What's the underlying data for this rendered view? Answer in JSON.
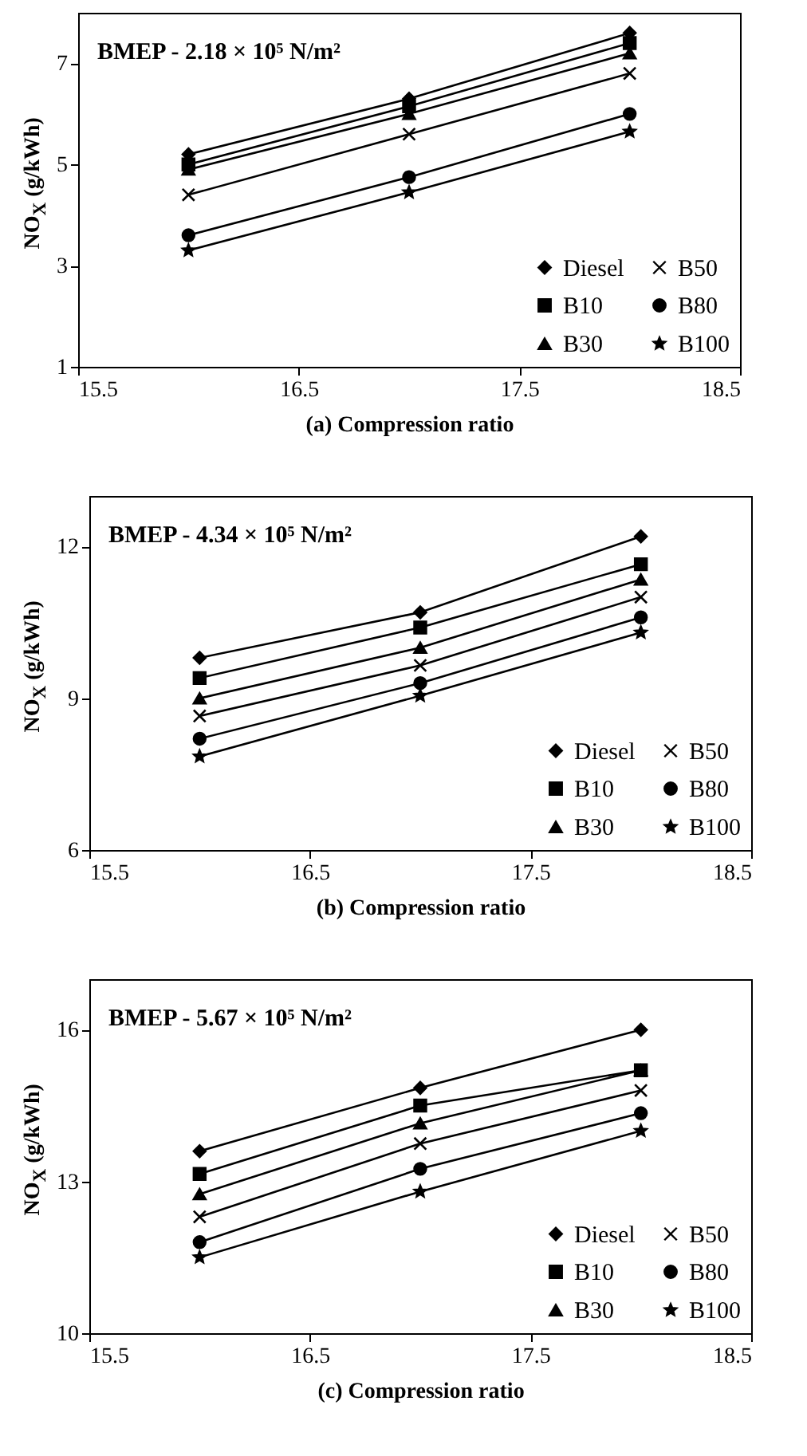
{
  "chart_data": [
    {
      "type": "line",
      "title": "BMEP - 2.18 × 10⁵ N/m²",
      "xlabel": "(a) Compression ratio",
      "ylabel": "NO$_{X}$ (g/kWh)",
      "x": [
        16,
        17,
        18
      ],
      "xlim": [
        15.5,
        18.5
      ],
      "xticks": [
        15.5,
        16.5,
        17.5,
        18.5
      ],
      "ylim": [
        1,
        8
      ],
      "yticks": [
        1,
        3,
        5,
        7
      ],
      "legend": "bottom right",
      "series": [
        {
          "name": "Diesel",
          "color": "#000000",
          "marker": "diamond",
          "values": [
            5.2,
            6.3,
            7.6
          ]
        },
        {
          "name": "B10",
          "color": "#000000",
          "marker": "square",
          "values": [
            5.0,
            6.15,
            7.4
          ]
        },
        {
          "name": "B30",
          "color": "#000000",
          "marker": "triangle",
          "values": [
            4.9,
            6.0,
            7.2
          ]
        },
        {
          "name": "B50",
          "color": "#000000",
          "marker": "cross",
          "values": [
            4.4,
            5.6,
            6.8
          ]
        },
        {
          "name": "B80",
          "color": "#000000",
          "marker": "circle",
          "values": [
            3.6,
            4.75,
            6.0
          ]
        },
        {
          "name": "B100",
          "color": "#000000",
          "marker": "star",
          "values": [
            3.3,
            4.45,
            5.65
          ]
        }
      ]
    },
    {
      "type": "line",
      "title": "BMEP - 4.34 × 10⁵ N/m²",
      "xlabel": "(b) Compression ratio",
      "ylabel": "NO$_{X}$ (g/kWh)",
      "x": [
        16,
        17,
        18
      ],
      "xlim": [
        15.5,
        18.5
      ],
      "xticks": [
        15.5,
        16.5,
        17.5,
        18.5
      ],
      "ylim": [
        6,
        13
      ],
      "yticks": [
        6,
        9,
        12
      ],
      "legend": "bottom right",
      "series": [
        {
          "name": "Diesel",
          "color": "#000000",
          "marker": "diamond",
          "values": [
            9.8,
            10.7,
            12.2
          ]
        },
        {
          "name": "B10",
          "color": "#000000",
          "marker": "square",
          "values": [
            9.4,
            10.4,
            11.65
          ]
        },
        {
          "name": "B30",
          "color": "#000000",
          "marker": "triangle",
          "values": [
            9.0,
            10.0,
            11.35
          ]
        },
        {
          "name": "B50",
          "color": "#000000",
          "marker": "cross",
          "values": [
            8.65,
            9.65,
            11.0
          ]
        },
        {
          "name": "B80",
          "color": "#000000",
          "marker": "circle",
          "values": [
            8.2,
            9.3,
            10.6
          ]
        },
        {
          "name": "B100",
          "color": "#000000",
          "marker": "star",
          "values": [
            7.85,
            9.05,
            10.3
          ]
        }
      ]
    },
    {
      "type": "line",
      "title": "BMEP - 5.67 × 10⁵ N/m²",
      "xlabel": "(c) Compression ratio",
      "ylabel": "NO$_{X}$ (g/kWh)",
      "x": [
        16,
        17,
        18
      ],
      "xlim": [
        15.5,
        18.5
      ],
      "xticks": [
        15.5,
        16.5,
        17.5,
        18.5
      ],
      "ylim": [
        10,
        17
      ],
      "yticks": [
        10,
        13,
        16
      ],
      "legend": "bottom right",
      "series": [
        {
          "name": "Diesel",
          "color": "#000000",
          "marker": "diamond",
          "values": [
            13.6,
            14.85,
            16.0
          ]
        },
        {
          "name": "B10",
          "color": "#000000",
          "marker": "square",
          "values": [
            13.15,
            14.5,
            15.2
          ]
        },
        {
          "name": "B30",
          "color": "#000000",
          "marker": "triangle",
          "values": [
            12.75,
            14.15,
            15.2
          ]
        },
        {
          "name": "B50",
          "color": "#000000",
          "marker": "cross",
          "values": [
            12.3,
            13.75,
            14.8
          ]
        },
        {
          "name": "B80",
          "color": "#000000",
          "marker": "circle",
          "values": [
            11.8,
            13.25,
            14.35
          ]
        },
        {
          "name": "B100",
          "color": "#000000",
          "marker": "star",
          "values": [
            11.5,
            12.8,
            14.0
          ]
        }
      ]
    }
  ]
}
